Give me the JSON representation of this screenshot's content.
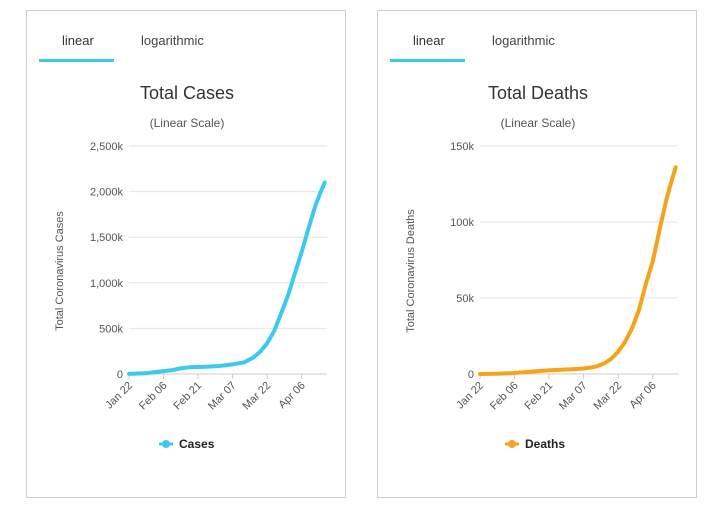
{
  "tabs": {
    "linear": "linear",
    "logarithmic": "logarithmic"
  },
  "colors": {
    "cases": "#3cc8f0",
    "deaths": "#f7a21b",
    "tab_underline": "#3cc8f0",
    "grid": "#e6e6e6"
  },
  "chart_data": [
    {
      "type": "line",
      "title": "Total Cases",
      "subtitle": "(Linear Scale)",
      "xlabel": "",
      "ylabel": "Total Coronavirus Cases",
      "ylim": [
        0,
        2500000
      ],
      "y_ticks": [
        0,
        500000,
        1000000,
        1500000,
        2000000,
        2500000
      ],
      "y_tick_labels": [
        "0",
        "500k",
        "1,000k",
        "1,500k",
        "2,000k",
        "2,500k"
      ],
      "x_tick_labels": [
        "Jan 22",
        "Feb 06",
        "Feb 21",
        "Mar 07",
        "Mar 22",
        "Apr 06"
      ],
      "x": [
        "Jan 22",
        "Jan 29",
        "Feb 05",
        "Feb 10",
        "Feb 13",
        "Feb 17",
        "Feb 24",
        "Mar 01",
        "Mar 07",
        "Mar 12",
        "Mar 16",
        "Mar 19",
        "Mar 22",
        "Mar 25",
        "Mar 28",
        "Mar 31",
        "Apr 03",
        "Apr 06",
        "Apr 09",
        "Apr 12",
        "Apr 14",
        "Apr 16"
      ],
      "series": [
        {
          "name": "Cases",
          "values": [
            580,
            7800,
            28000,
            43000,
            60000,
            73000,
            80000,
            88000,
            105000,
            128000,
            180000,
            245000,
            337000,
            467000,
            660000,
            857000,
            1100000,
            1340000,
            1600000,
            1850000,
            1980000,
            2100000
          ]
        }
      ],
      "legend": "bottom-center",
      "grid": true
    },
    {
      "type": "line",
      "title": "Total Deaths",
      "subtitle": "(Linear Scale)",
      "xlabel": "",
      "ylabel": "Total Coronavirus Deaths",
      "ylim": [
        0,
        150000
      ],
      "y_ticks": [
        0,
        50000,
        100000,
        150000
      ],
      "y_tick_labels": [
        "0",
        "50k",
        "100k",
        "150k"
      ],
      "x_tick_labels": [
        "Jan 22",
        "Feb 06",
        "Feb 21",
        "Mar 07",
        "Mar 22",
        "Apr 06"
      ],
      "x": [
        "Jan 22",
        "Jan 29",
        "Feb 05",
        "Feb 12",
        "Feb 19",
        "Feb 26",
        "Mar 03",
        "Mar 07",
        "Mar 12",
        "Mar 16",
        "Mar 19",
        "Mar 22",
        "Mar 25",
        "Mar 28",
        "Mar 31",
        "Apr 03",
        "Apr 06",
        "Apr 09",
        "Apr 12",
        "Apr 14",
        "Apr 16"
      ],
      "series": [
        {
          "name": "Deaths",
          "values": [
            17,
            170,
            560,
            1370,
            2250,
            2800,
            3200,
            3600,
            4700,
            7000,
            10000,
            14700,
            21000,
            30000,
            42000,
            59000,
            74000,
            95000,
            115000,
            126000,
            136000
          ]
        }
      ],
      "legend": "bottom-center",
      "grid": true
    }
  ]
}
